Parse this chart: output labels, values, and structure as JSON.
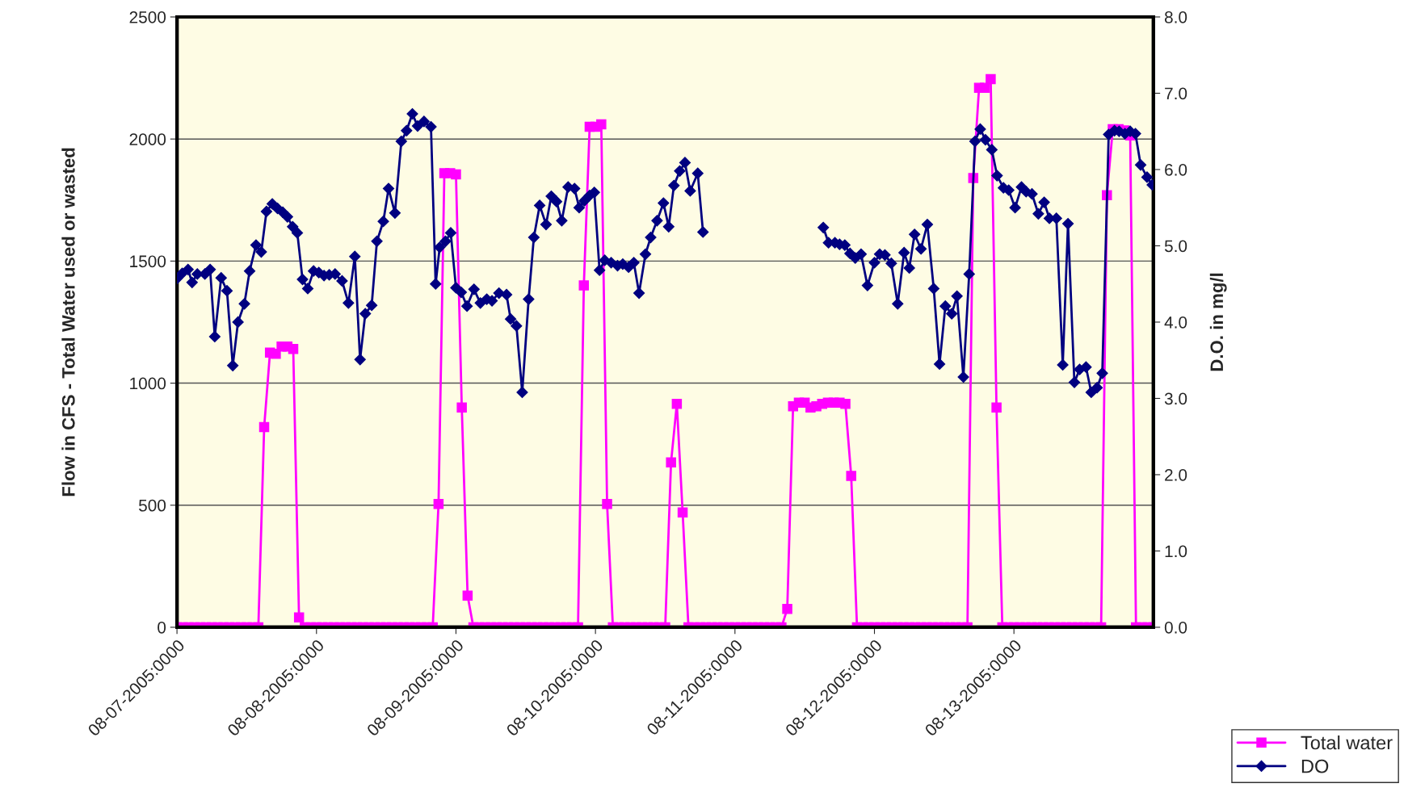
{
  "chart_data": {
    "type": "line",
    "ylabel": "Flow in CFS - Total Water used or wasted",
    "y2label": "D.O. in mg/l",
    "xlim": [
      "2005-08-07T00:00",
      "2005-08-14T00:00"
    ],
    "xticks": [
      {
        "value": "2005-08-07T00:00",
        "label": "08-07-2005:0000"
      },
      {
        "value": "2005-08-08T00:00",
        "label": "08-08-2005:0000"
      },
      {
        "value": "2005-08-09T00:00",
        "label": "08-09-2005:0000"
      },
      {
        "value": "2005-08-10T00:00",
        "label": "08-10-2005:0000"
      },
      {
        "value": "2005-08-11T00:00",
        "label": "08-11-2005:0000"
      },
      {
        "value": "2005-08-12T00:00",
        "label": "08-12-2005:0000"
      },
      {
        "value": "2005-08-13T00:00",
        "label": "08-13-2005:0000"
      }
    ],
    "ylim": [
      0,
      2500
    ],
    "yticks": [
      0,
      500,
      1000,
      1500,
      2000,
      2500
    ],
    "y2lim": [
      0,
      8
    ],
    "y2ticks": [
      {
        "value": 0,
        "label": "0.0"
      },
      {
        "value": 1,
        "label": "1.0"
      },
      {
        "value": 2,
        "label": "2.0"
      },
      {
        "value": 3,
        "label": "3.0"
      },
      {
        "value": 4,
        "label": "4.0"
      },
      {
        "value": 5,
        "label": "5.0"
      },
      {
        "value": 6,
        "label": "6.0"
      },
      {
        "value": 7,
        "label": "7.0"
      },
      {
        "value": 8,
        "label": "8.0"
      }
    ],
    "grid": "y",
    "legend": "bottom right",
    "series": [
      {
        "name": "Total water",
        "color": "#ff00ff",
        "marker": "square",
        "x": [
          "2005-08-07T00:00",
          "2005-08-07T01:00",
          "2005-08-07T02:00",
          "2005-08-07T03:00",
          "2005-08-07T04:00",
          "2005-08-07T05:00",
          "2005-08-07T06:00",
          "2005-08-07T07:00",
          "2005-08-07T08:00",
          "2005-08-07T09:00",
          "2005-08-07T10:00",
          "2005-08-07T11:00",
          "2005-08-07T12:00",
          "2005-08-07T13:00",
          "2005-08-07T14:00",
          "2005-08-07T15:00",
          "2005-08-07T16:00",
          "2005-08-07T17:00",
          "2005-08-07T18:00",
          "2005-08-07T19:00",
          "2005-08-07T20:00",
          "2005-08-07T21:00",
          "2005-08-07T22:00",
          "2005-08-07T23:00",
          "2005-08-08T00:00",
          "2005-08-08T01:00",
          "2005-08-08T02:00",
          "2005-08-08T03:00",
          "2005-08-08T04:00",
          "2005-08-08T05:00",
          "2005-08-08T06:00",
          "2005-08-08T07:00",
          "2005-08-08T08:00",
          "2005-08-08T09:00",
          "2005-08-08T10:00",
          "2005-08-08T11:00",
          "2005-08-08T12:00",
          "2005-08-08T13:00",
          "2005-08-08T14:00",
          "2005-08-08T15:00",
          "2005-08-08T16:00",
          "2005-08-08T17:00",
          "2005-08-08T18:00",
          "2005-08-08T19:00",
          "2005-08-08T20:00",
          "2005-08-08T21:00",
          "2005-08-08T22:00",
          "2005-08-08T23:00",
          "2005-08-09T00:00",
          "2005-08-09T01:00",
          "2005-08-09T02:00",
          "2005-08-09T03:00",
          "2005-08-09T04:00",
          "2005-08-09T05:00",
          "2005-08-09T06:00",
          "2005-08-09T07:00",
          "2005-08-09T08:00",
          "2005-08-09T09:00",
          "2005-08-09T10:00",
          "2005-08-09T11:00",
          "2005-08-09T12:00",
          "2005-08-09T13:00",
          "2005-08-09T14:00",
          "2005-08-09T15:00",
          "2005-08-09T16:00",
          "2005-08-09T17:00",
          "2005-08-09T18:00",
          "2005-08-09T19:00",
          "2005-08-09T20:00",
          "2005-08-09T21:00",
          "2005-08-09T22:00",
          "2005-08-09T23:00",
          "2005-08-10T00:00",
          "2005-08-10T01:00",
          "2005-08-10T02:00",
          "2005-08-10T03:00",
          "2005-08-10T04:00",
          "2005-08-10T05:00",
          "2005-08-10T06:00",
          "2005-08-10T07:00",
          "2005-08-10T08:00",
          "2005-08-10T09:00",
          "2005-08-10T10:00",
          "2005-08-10T11:00",
          "2005-08-10T12:00",
          "2005-08-10T13:00",
          "2005-08-10T14:00",
          "2005-08-10T15:00",
          "2005-08-10T16:00",
          "2005-08-10T17:00",
          "2005-08-10T18:00",
          "2005-08-10T19:00",
          "2005-08-10T20:00",
          "2005-08-10T21:00",
          "2005-08-10T22:00",
          "2005-08-10T23:00",
          "2005-08-11T00:00",
          "2005-08-11T01:00",
          "2005-08-11T02:00",
          "2005-08-11T03:00",
          "2005-08-11T04:00",
          "2005-08-11T05:00",
          "2005-08-11T06:00",
          "2005-08-11T07:00",
          "2005-08-11T08:00",
          "2005-08-11T09:00",
          "2005-08-11T10:00",
          "2005-08-11T11:00",
          "2005-08-11T12:00",
          "2005-08-11T13:00",
          "2005-08-11T14:00",
          "2005-08-11T15:00",
          "2005-08-11T16:00",
          "2005-08-11T17:00",
          "2005-08-11T18:00",
          "2005-08-11T19:00",
          "2005-08-11T20:00",
          "2005-08-11T21:00",
          "2005-08-11T22:00",
          "2005-08-11T23:00",
          "2005-08-12T00:00",
          "2005-08-12T01:00",
          "2005-08-12T02:00",
          "2005-08-12T03:00",
          "2005-08-12T04:00",
          "2005-08-12T05:00",
          "2005-08-12T06:00",
          "2005-08-12T07:00",
          "2005-08-12T08:00",
          "2005-08-12T09:00",
          "2005-08-12T10:00",
          "2005-08-12T11:00",
          "2005-08-12T12:00",
          "2005-08-12T13:00",
          "2005-08-12T14:00",
          "2005-08-12T15:00",
          "2005-08-12T16:00",
          "2005-08-12T17:00",
          "2005-08-12T18:00",
          "2005-08-12T19:00",
          "2005-08-12T20:00",
          "2005-08-12T21:00",
          "2005-08-12T22:00",
          "2005-08-12T23:00",
          "2005-08-13T00:00",
          "2005-08-13T01:00",
          "2005-08-13T02:00",
          "2005-08-13T03:00",
          "2005-08-13T04:00",
          "2005-08-13T05:00",
          "2005-08-13T06:00",
          "2005-08-13T07:00",
          "2005-08-13T08:00",
          "2005-08-13T09:00",
          "2005-08-13T10:00",
          "2005-08-13T11:00",
          "2005-08-13T12:00",
          "2005-08-13T13:00",
          "2005-08-13T14:00",
          "2005-08-13T15:00",
          "2005-08-13T16:00",
          "2005-08-13T17:00",
          "2005-08-13T18:00",
          "2005-08-13T19:00",
          "2005-08-13T20:00",
          "2005-08-13T21:00",
          "2005-08-13T22:00",
          "2005-08-13T23:00",
          "2005-08-14T00:00"
        ],
        "values": [
          0,
          0,
          0,
          0,
          0,
          0,
          0,
          0,
          0,
          0,
          0,
          0,
          0,
          0,
          0,
          820,
          1125,
          1120,
          1150,
          1150,
          1140,
          40,
          0,
          0,
          0,
          0,
          0,
          0,
          0,
          0,
          0,
          0,
          0,
          0,
          0,
          0,
          0,
          0,
          0,
          0,
          0,
          0,
          0,
          0,
          0,
          505,
          1860,
          1860,
          1855,
          900,
          130,
          0,
          0,
          0,
          0,
          0,
          0,
          0,
          0,
          0,
          0,
          0,
          0,
          0,
          0,
          0,
          0,
          0,
          0,
          0,
          1400,
          2050,
          2050,
          2060,
          505,
          0,
          0,
          0,
          0,
          0,
          0,
          0,
          0,
          0,
          0,
          675,
          915,
          470,
          0,
          0,
          0,
          0,
          0,
          0,
          0,
          0,
          0,
          0,
          0,
          0,
          0,
          0,
          0,
          0,
          0,
          75,
          905,
          920,
          920,
          900,
          905,
          915,
          920,
          920,
          920,
          915,
          620,
          0,
          0,
          0,
          0,
          0,
          0,
          0,
          0,
          0,
          0,
          0,
          0,
          0,
          0,
          0,
          0,
          0,
          0,
          0,
          0,
          1840,
          2210,
          2210,
          2245,
          900,
          0,
          0,
          0,
          0,
          0,
          0,
          0,
          0,
          0,
          0,
          0,
          0,
          0,
          0,
          0,
          0,
          0,
          0,
          1770,
          2040,
          2040,
          2035,
          2015,
          0,
          0,
          0,
          0
        ]
      },
      {
        "name": "DO",
        "color": "#000080",
        "marker": "diamond",
        "axis": "y2",
        "x": [
          "2005-08-07T00:00",
          "2005-08-07T00:54",
          "2005-08-07T01:54",
          "2005-08-07T02:36",
          "2005-08-07T03:30",
          "2005-08-07T04:48",
          "2005-08-07T05:42",
          "2005-08-07T06:30",
          "2005-08-07T07:36",
          "2005-08-07T08:36",
          "2005-08-07T09:36",
          "2005-08-07T10:30",
          "2005-08-07T11:36",
          "2005-08-07T12:30",
          "2005-08-07T13:36",
          "2005-08-07T14:30",
          "2005-08-07T15:24",
          "2005-08-07T16:24",
          "2005-08-07T17:18",
          "2005-08-07T18:12",
          "2005-08-07T19:00",
          "2005-08-07T19:54",
          "2005-08-07T20:42",
          "2005-08-07T21:36",
          "2005-08-07T22:30",
          "2005-08-07T23:30",
          "2005-08-08T00:24",
          "2005-08-08T01:18",
          "2005-08-08T02:12",
          "2005-08-08T03:12",
          "2005-08-08T04:24",
          "2005-08-08T05:30",
          "2005-08-08T06:36",
          "2005-08-08T07:30",
          "2005-08-08T08:24",
          "2005-08-08T09:30",
          "2005-08-08T10:24",
          "2005-08-08T11:30",
          "2005-08-08T12:24",
          "2005-08-08T13:30",
          "2005-08-08T14:36",
          "2005-08-08T15:30",
          "2005-08-08T16:30",
          "2005-08-08T17:24",
          "2005-08-08T18:30",
          "2005-08-08T19:42",
          "2005-08-08T20:30",
          "2005-08-08T21:12",
          "2005-08-08T22:12",
          "2005-08-08T23:06",
          "2005-08-09T00:00",
          "2005-08-09T00:54",
          "2005-08-09T01:54",
          "2005-08-09T03:06",
          "2005-08-09T04:12",
          "2005-08-09T05:18",
          "2005-08-09T06:12",
          "2005-08-09T07:24",
          "2005-08-09T08:42",
          "2005-08-09T09:24",
          "2005-08-09T10:24",
          "2005-08-09T11:24",
          "2005-08-09T12:30",
          "2005-08-09T13:24",
          "2005-08-09T14:24",
          "2005-08-09T15:30",
          "2005-08-09T16:24",
          "2005-08-09T17:18",
          "2005-08-09T18:12",
          "2005-08-09T19:18",
          "2005-08-09T20:24",
          "2005-08-09T21:12",
          "2005-08-09T22:06",
          "2005-08-09T23:00",
          "2005-08-09T23:48",
          "2005-08-10T00:42",
          "2005-08-10T01:36",
          "2005-08-10T02:42",
          "2005-08-10T03:48",
          "2005-08-10T04:42",
          "2005-08-10T05:42",
          "2005-08-10T06:36",
          "2005-08-10T07:30",
          "2005-08-10T08:36",
          "2005-08-10T09:30",
          "2005-08-10T10:36",
          "2005-08-10T11:42",
          "2005-08-10T12:36",
          "2005-08-10T13:30",
          "2005-08-10T14:30",
          "2005-08-10T15:24",
          "2005-08-10T16:18",
          "2005-08-10T17:36",
          "2005-08-10T18:30",
          "2005-08-10T19:30",
          "2005-08-11T15:12",
          "2005-08-11T16:06",
          "2005-08-11T17:12",
          "2005-08-11T18:00",
          "2005-08-11T18:54",
          "2005-08-11T19:48",
          "2005-08-11T20:42",
          "2005-08-11T21:42",
          "2005-08-11T22:48",
          "2005-08-12T00:00",
          "2005-08-12T00:54",
          "2005-08-12T01:48",
          "2005-08-12T02:54",
          "2005-08-12T04:00",
          "2005-08-12T05:06",
          "2005-08-12T06:00",
          "2005-08-12T06:54",
          "2005-08-12T08:00",
          "2005-08-12T09:06",
          "2005-08-12T10:12",
          "2005-08-12T11:12",
          "2005-08-12T12:12",
          "2005-08-12T13:18",
          "2005-08-12T14:12",
          "2005-08-12T15:18",
          "2005-08-12T16:18",
          "2005-08-12T17:18",
          "2005-08-12T18:12",
          "2005-08-12T19:06",
          "2005-08-12T20:12",
          "2005-08-12T21:06",
          "2005-08-12T22:12",
          "2005-08-12T23:06",
          "2005-08-13T00:12",
          "2005-08-13T01:18",
          "2005-08-13T02:06",
          "2005-08-13T03:06",
          "2005-08-13T04:12",
          "2005-08-13T05:12",
          "2005-08-13T06:06",
          "2005-08-13T07:18",
          "2005-08-13T08:24",
          "2005-08-13T09:18",
          "2005-08-13T10:24",
          "2005-08-13T11:18",
          "2005-08-13T12:24",
          "2005-08-13T13:18",
          "2005-08-13T14:18",
          "2005-08-13T15:12",
          "2005-08-13T16:18",
          "2005-08-13T17:18",
          "2005-08-13T18:06",
          "2005-08-13T19:06",
          "2005-08-13T20:00",
          "2005-08-13T20:54",
          "2005-08-13T21:48",
          "2005-08-13T22:54",
          "2005-08-13T23:48"
        ],
        "values": [
          4.57,
          4.64,
          4.69,
          4.52,
          4.63,
          4.63,
          4.69,
          3.81,
          4.58,
          4.41,
          3.43,
          4.0,
          4.24,
          4.67,
          5.01,
          4.92,
          5.45,
          5.55,
          5.49,
          5.44,
          5.38,
          5.25,
          5.17,
          4.56,
          4.44,
          4.67,
          4.65,
          4.61,
          4.62,
          4.63,
          4.54,
          4.25,
          4.86,
          3.51,
          4.11,
          4.22,
          5.06,
          5.32,
          5.75,
          5.43,
          6.37,
          6.51,
          6.73,
          6.57,
          6.63,
          6.56,
          4.5,
          4.98,
          5.06,
          5.17,
          4.45,
          4.39,
          4.21,
          4.43,
          4.25,
          4.3,
          4.28,
          4.38,
          4.36,
          4.04,
          3.95,
          3.08,
          4.3,
          5.11,
          5.53,
          5.28,
          5.65,
          5.58,
          5.33,
          5.77,
          5.75,
          5.5,
          5.59,
          5.66,
          5.7,
          4.68,
          4.81,
          4.78,
          4.74,
          4.76,
          4.72,
          4.78,
          4.38,
          4.89,
          5.11,
          5.33,
          5.56,
          5.25,
          5.79,
          5.98,
          6.09,
          5.72,
          5.95,
          5.18,
          null,
          5.24,
          5.04,
          5.04,
          5.02,
          5.01,
          4.9,
          4.84,
          4.89,
          4.48,
          4.78,
          4.89,
          4.88,
          4.77,
          4.24,
          4.91,
          4.71,
          5.15,
          4.96,
          5.28,
          4.44,
          3.45,
          4.21,
          4.11,
          4.34,
          3.28,
          4.63,
          6.37,
          6.53,
          6.39,
          6.26,
          5.92,
          5.76,
          5.73,
          5.5,
          5.77,
          5.71,
          5.68,
          5.42,
          5.57,
          5.36,
          5.36,
          3.44,
          5.29,
          3.21,
          3.38,
          3.41,
          3.08,
          3.14,
          3.33,
          6.46,
          6.51,
          6.5,
          6.47,
          6.5,
          6.47,
          6.06,
          5.9,
          5.8
        ]
      }
    ]
  }
}
